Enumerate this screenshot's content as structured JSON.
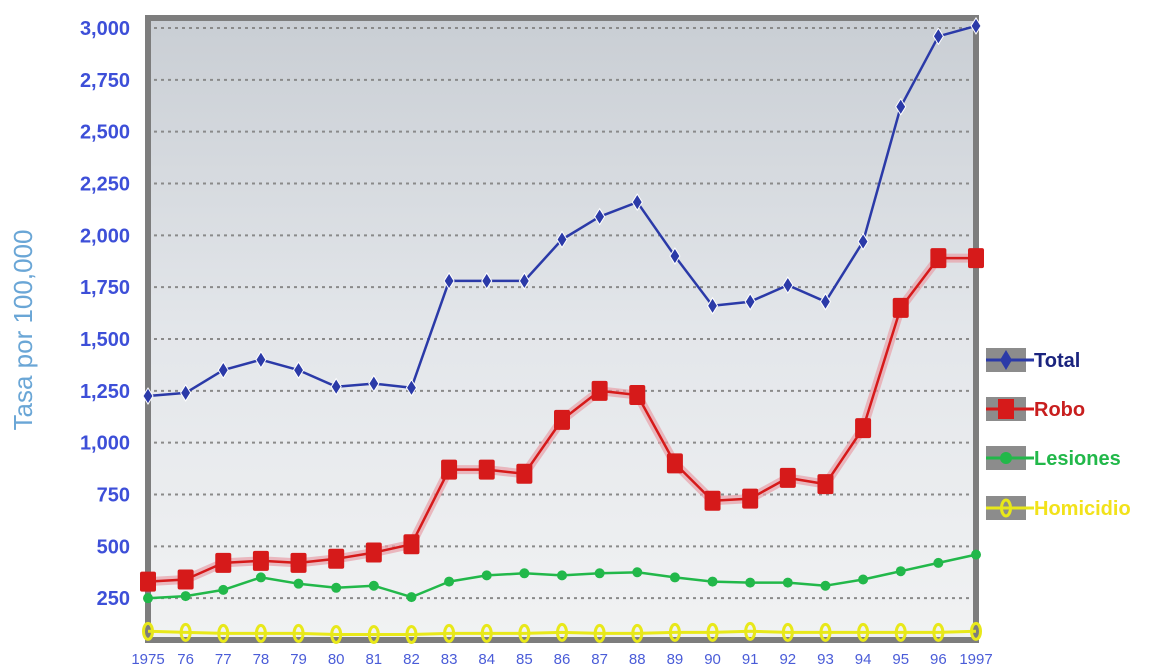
{
  "chart_data": {
    "type": "line",
    "ylabel": "Tasa por 100,000",
    "xlabel": "",
    "x": [
      1975,
      1976,
      1977,
      1978,
      1979,
      1980,
      1981,
      1982,
      1983,
      1984,
      1985,
      1986,
      1987,
      1988,
      1989,
      1990,
      1991,
      1992,
      1993,
      1994,
      1995,
      1996,
      1997
    ],
    "x_tick_labels": [
      "1975",
      "76",
      "77",
      "78",
      "79",
      "80",
      "81",
      "82",
      "83",
      "84",
      "85",
      "86",
      "87",
      "88",
      "89",
      "90",
      "91",
      "92",
      "93",
      "94",
      "95",
      "96",
      "1997"
    ],
    "ylim": [
      0,
      3000
    ],
    "y_ticks": [
      250,
      500,
      750,
      1000,
      1250,
      1500,
      1750,
      2000,
      2250,
      2500,
      2750,
      3000
    ],
    "y_tick_labels": [
      "250",
      "500",
      "750",
      "1,000",
      "1,250",
      "1,500",
      "1,750",
      "2,000",
      "2,250",
      "2,500",
      "2,750",
      "3,000"
    ],
    "grid": true,
    "legend_position": "right",
    "series": [
      {
        "name": "Total",
        "color": "#2b3aa8",
        "marker": "diamond",
        "values": [
          1225,
          1240,
          1350,
          1400,
          1350,
          1270,
          1285,
          1265,
          1780,
          1780,
          1780,
          1980,
          2090,
          2160,
          1900,
          1660,
          1680,
          1760,
          1680,
          1970,
          2620,
          2960,
          3010
        ]
      },
      {
        "name": "Robo",
        "color": "#d61a1a",
        "marker": "square",
        "values": [
          330,
          340,
          420,
          430,
          420,
          440,
          470,
          510,
          870,
          870,
          850,
          1110,
          1250,
          1230,
          900,
          720,
          730,
          830,
          800,
          1070,
          1650,
          1890,
          1890
        ]
      },
      {
        "name": "Lesiones",
        "color": "#22b84a",
        "marker": "circle",
        "values": [
          250,
          260,
          290,
          350,
          320,
          300,
          310,
          255,
          330,
          360,
          370,
          360,
          370,
          375,
          350,
          330,
          325,
          325,
          310,
          340,
          380,
          420,
          460
        ]
      },
      {
        "name": "Homicidio",
        "color": "#e8e81a",
        "marker": "ring",
        "values": [
          90,
          85,
          80,
          80,
          80,
          75,
          75,
          75,
          80,
          80,
          80,
          85,
          80,
          80,
          85,
          85,
          90,
          85,
          85,
          85,
          85,
          85,
          90
        ]
      }
    ]
  }
}
